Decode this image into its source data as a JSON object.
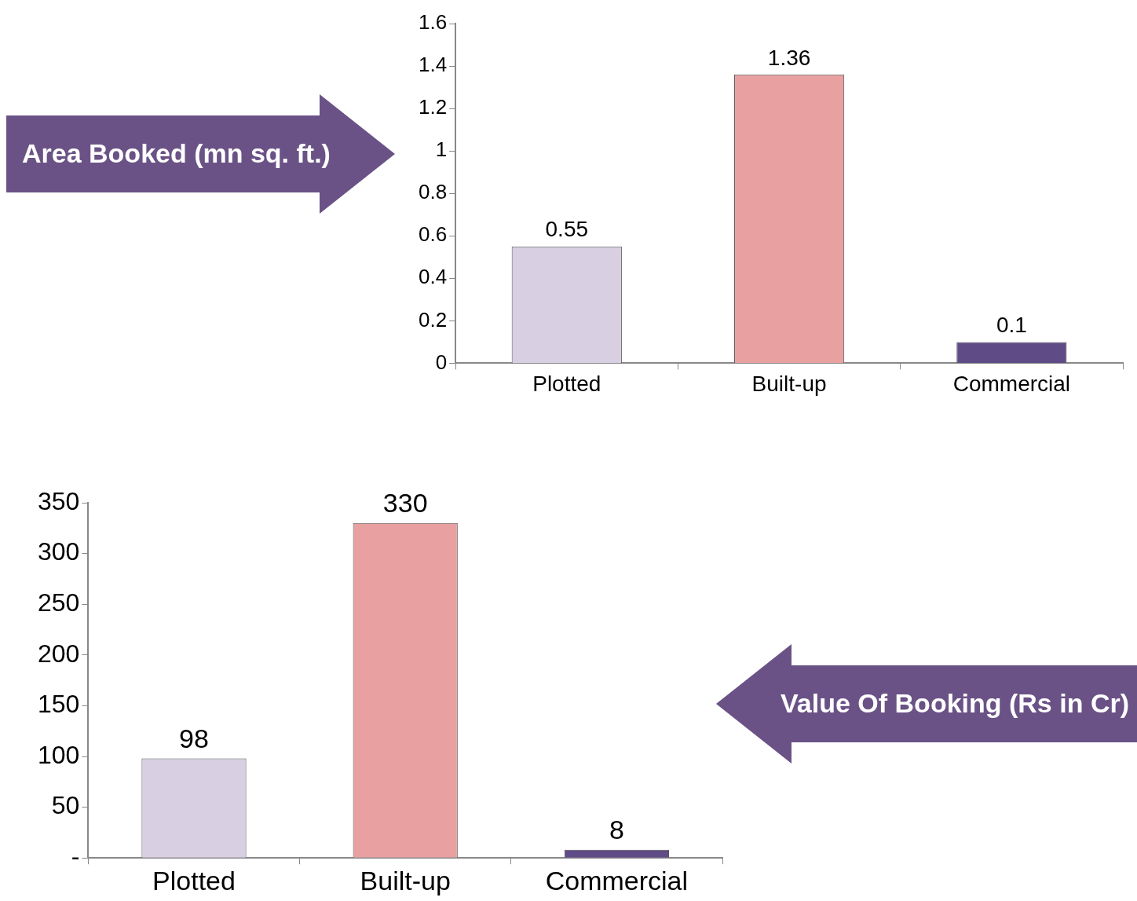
{
  "chart_data": [
    {
      "type": "bar",
      "title": "Area Booked (mn sq. ft.)",
      "categories": [
        "Plotted",
        "Built-up",
        "Commercial"
      ],
      "values": [
        0.55,
        1.36,
        0.1
      ],
      "colors": [
        "#d9cfe3",
        "#e8a0a0",
        "#5f4b86"
      ],
      "ylim": [
        0,
        1.6
      ],
      "yticks": [
        0,
        0.2,
        0.4,
        0.6,
        0.8,
        1,
        1.2,
        1.4,
        1.6
      ],
      "grid": false,
      "legend": false,
      "data_labels": true
    },
    {
      "type": "bar",
      "annotations": [
        "Value Of Booking (Rs in Cr)"
      ],
      "categories": [
        "Plotted",
        "Built-up",
        "Commercial"
      ],
      "values": [
        98,
        330,
        8
      ],
      "colors": [
        "#d9cfe3",
        "#e8a0a0",
        "#5f4b86"
      ],
      "ylim": [
        0,
        350
      ],
      "yticks": [
        {
          "value": 0,
          "label": "-"
        },
        50,
        100,
        150,
        200,
        250,
        300,
        350
      ],
      "grid": false,
      "legend": false,
      "data_labels": true
    }
  ]
}
